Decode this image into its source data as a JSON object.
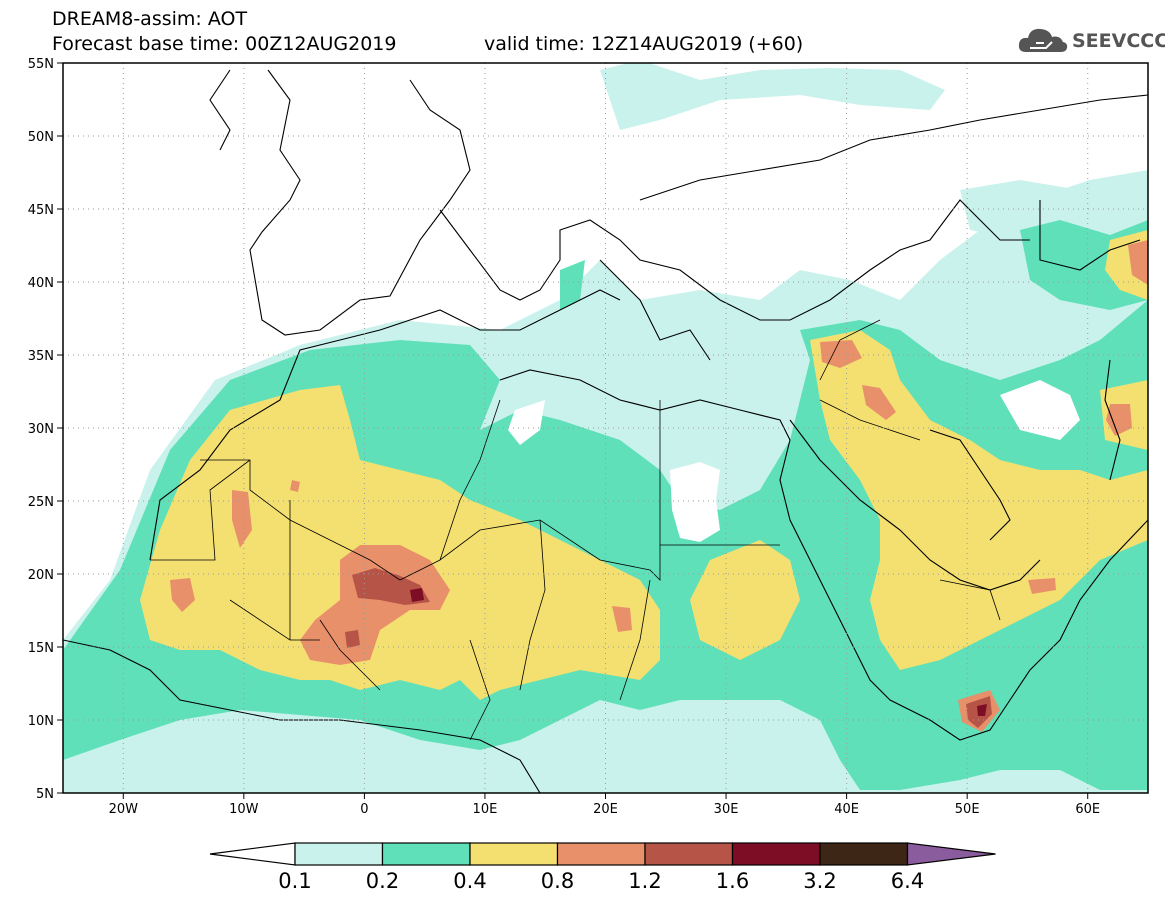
{
  "header": {
    "line1": "DREAM8-assim: AOT",
    "line2": "Forecast base time: 00Z12AUG2019",
    "valid": "valid time: 12Z14AUG2019 (+60)"
  },
  "logo": {
    "text": "SEEVCCC",
    "icon": "cloud-icon"
  },
  "map": {
    "lon_range": [
      -25,
      65
    ],
    "lat_range": [
      5,
      55
    ],
    "lat_labels": [
      "55N",
      "50N",
      "45N",
      "40N",
      "35N",
      "30N",
      "25N",
      "20N",
      "15N",
      "10N",
      "5N"
    ],
    "lat_values": [
      55,
      50,
      45,
      40,
      35,
      30,
      25,
      20,
      15,
      10,
      5
    ],
    "lon_labels": [
      "20W",
      "10W",
      "0",
      "10E",
      "20E",
      "30E",
      "40E",
      "50E",
      "60E"
    ],
    "lon_values": [
      -20,
      -10,
      0,
      10,
      20,
      30,
      40,
      50,
      60
    ],
    "grid": true
  },
  "colorbar": {
    "levels": [
      "0.1",
      "0.2",
      "0.4",
      "0.8",
      "1.2",
      "1.6",
      "3.2",
      "6.4"
    ],
    "colors": [
      "#c9f2ec",
      "#5fe0b8",
      "#f4e071",
      "#e8906a",
      "#b65448",
      "#7d0d25",
      "#3d2616",
      "#8a5c9e"
    ]
  }
}
